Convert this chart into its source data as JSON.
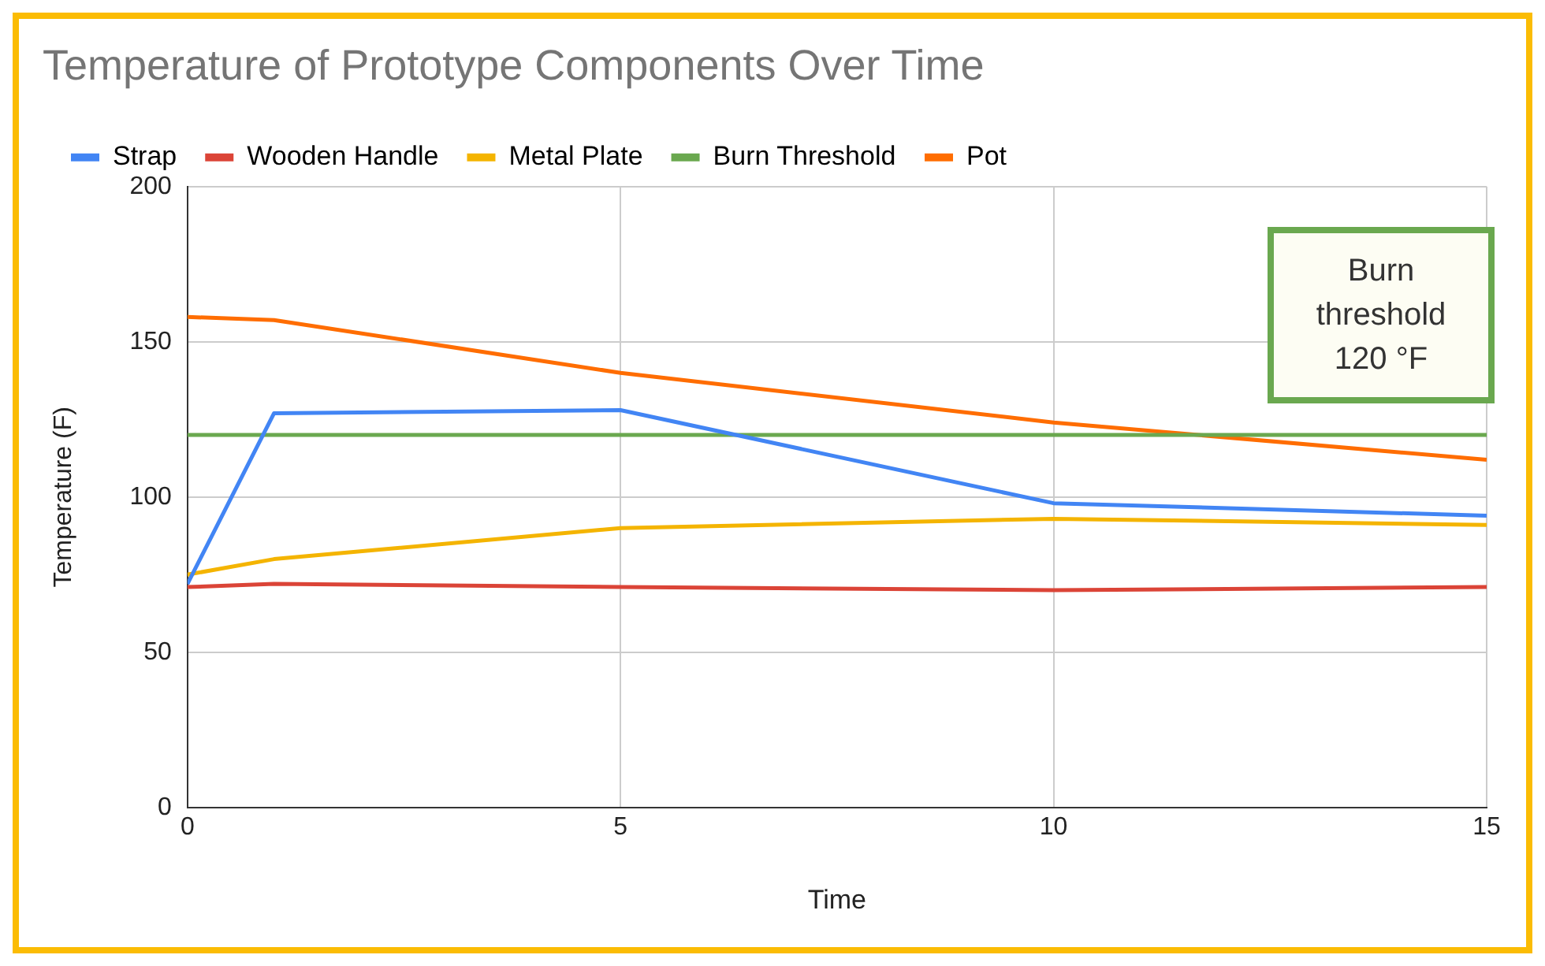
{
  "chart_data": {
    "type": "line",
    "title": "Temperature of Prototype Components Over Time",
    "xlabel": "Time",
    "ylabel": "Temperature (F)",
    "x": [
      0,
      1,
      5,
      10,
      15
    ],
    "series": [
      {
        "name": "Strap",
        "color": "#4285f4",
        "values": [
          72,
          127,
          128,
          98,
          94
        ]
      },
      {
        "name": "Wooden Handle",
        "color": "#db4437",
        "values": [
          71,
          72,
          71,
          70,
          71
        ]
      },
      {
        "name": "Metal Plate",
        "color": "#f4b400",
        "values": [
          75,
          80,
          90,
          93,
          91
        ]
      },
      {
        "name": "Burn Threshold",
        "color": "#6aa84f",
        "values": [
          120,
          120,
          120,
          120,
          120
        ]
      },
      {
        "name": "Pot",
        "color": "#ff6d01",
        "values": [
          158,
          157,
          140,
          124,
          112
        ]
      }
    ],
    "xlim": [
      0,
      15
    ],
    "xticks": [
      0,
      5,
      10,
      15
    ],
    "ylim": [
      0,
      200
    ],
    "yticks": [
      0,
      50,
      100,
      150,
      200
    ],
    "grid": true,
    "legend": "top left",
    "marker": "none",
    "line_style": "solid",
    "annotations": [
      "Burn threshold 120 °F"
    ]
  }
}
